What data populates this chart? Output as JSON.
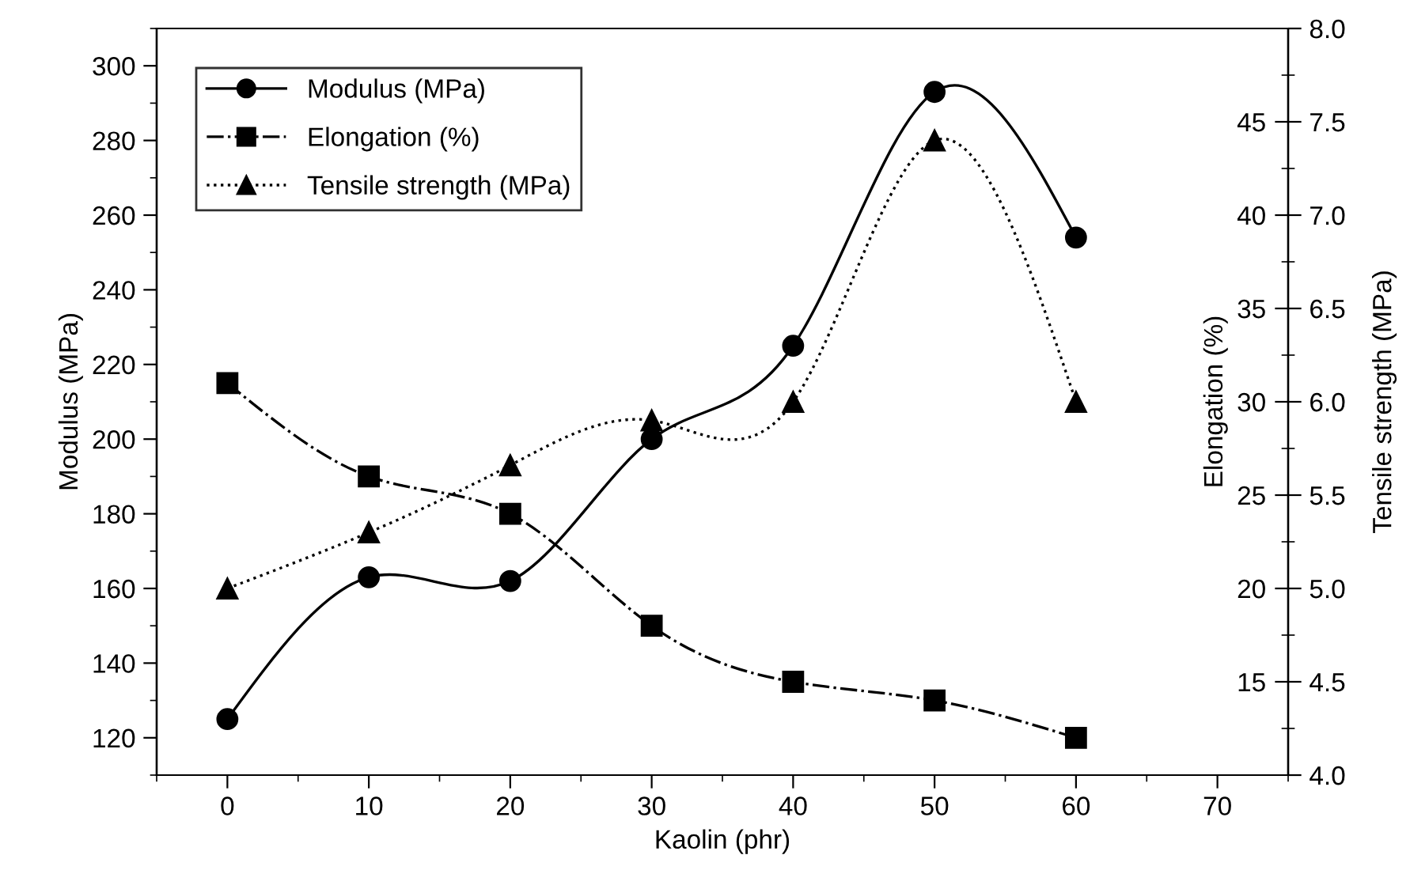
{
  "chart_data": {
    "type": "line",
    "xlabel": "Kaolin (phr)",
    "ylabel": "Modulus (MPa)",
    "y2label": "Elongation (%)",
    "y3label": "Tensile strength (MPa)",
    "x": [
      0,
      10,
      20,
      30,
      40,
      50,
      60
    ],
    "series": [
      {
        "name": "Modulus (MPa)",
        "color": "#000000",
        "marker": "circle",
        "line_style": "solid",
        "axis": "y",
        "values": [
          125,
          163,
          162,
          200,
          225,
          293,
          254
        ]
      },
      {
        "name": "Elongation (%)",
        "color": "#000000",
        "marker": "square",
        "line_style": "dashdot",
        "axis": "y2",
        "values": [
          31,
          26,
          24,
          18,
          15,
          14,
          12
        ]
      },
      {
        "name": "Tensile strength (MPa)",
        "color": "#000000",
        "marker": "triangle",
        "line_style": "dotted",
        "axis": "y3",
        "values": [
          5.0,
          5.3,
          5.66,
          5.9,
          6.0,
          7.4,
          6.0
        ]
      }
    ],
    "xlim": [
      -5,
      75
    ],
    "xticks": [
      0,
      10,
      20,
      30,
      40,
      50,
      60,
      70
    ],
    "ylim": [
      110,
      310
    ],
    "yticks": [
      120,
      140,
      160,
      180,
      200,
      220,
      240,
      260,
      280,
      300
    ],
    "y2lim": [
      10,
      50
    ],
    "y2ticks": [
      15,
      20,
      25,
      30,
      35,
      40,
      45
    ],
    "y3lim": [
      4,
      8
    ],
    "y3ticks": [
      {
        "value": 4,
        "label": "4.0"
      },
      {
        "value": 4.5,
        "label": "4.5"
      },
      {
        "value": 5,
        "label": "5.0"
      },
      {
        "value": 5.5,
        "label": "5.5"
      },
      {
        "value": 6,
        "label": "6.0"
      },
      {
        "value": 6.5,
        "label": "6.5"
      },
      {
        "value": 7,
        "label": "7.0"
      },
      {
        "value": 7.5,
        "label": "7.5"
      },
      {
        "value": 8,
        "label": "8.0"
      }
    ],
    "legend": "top left",
    "grid": false
  }
}
